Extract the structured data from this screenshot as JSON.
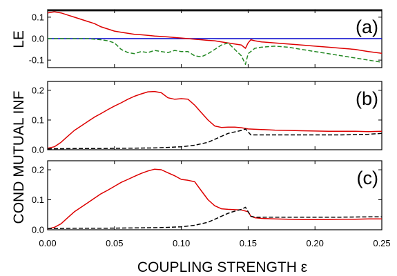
{
  "chart_data": {
    "type": "line",
    "xlabel": "COUPLING STRENGTH ε",
    "ylabel_top": "LE",
    "ylabel_bottom": "COND MUTUAL INF",
    "xlim": [
      0.0,
      0.25
    ],
    "x_ticks": [
      "0.00",
      "0.05",
      "0.10",
      "0.15",
      "0.20",
      "0.25"
    ],
    "x_tick_values": [
      0.0,
      0.05,
      0.1,
      0.15,
      0.2,
      0.25
    ],
    "panels": [
      {
        "label": "(a)",
        "ylim": [
          -0.135,
          0.135
        ],
        "y_ticks": [
          "0.1",
          "0.0",
          "-0.1"
        ],
        "y_tick_values": [
          0.1,
          0.0,
          -0.1
        ],
        "series": [
          {
            "color": "#000000",
            "style": "solid",
            "x": [
              0.0,
              0.25
            ],
            "y": [
              0.13,
              0.13
            ]
          },
          {
            "color": "#0000cc",
            "style": "solid",
            "x": [
              0.0,
              0.25
            ],
            "y": [
              0.0,
              0.0
            ]
          },
          {
            "color": "#dd0000",
            "style": "solid",
            "x": [
              0.0,
              0.005,
              0.01,
              0.015,
              0.02,
              0.025,
              0.03,
              0.035,
              0.04,
              0.045,
              0.05,
              0.055,
              0.06,
              0.065,
              0.07,
              0.075,
              0.08,
              0.085,
              0.09,
              0.095,
              0.1,
              0.105,
              0.11,
              0.115,
              0.12,
              0.125,
              0.13,
              0.135,
              0.14,
              0.145,
              0.148,
              0.15,
              0.152,
              0.155,
              0.16,
              0.17,
              0.18,
              0.19,
              0.2,
              0.21,
              0.22,
              0.23,
              0.24,
              0.25
            ],
            "y": [
              0.12,
              0.125,
              0.12,
              0.11,
              0.1,
              0.09,
              0.08,
              0.07,
              0.055,
              0.045,
              0.035,
              0.03,
              0.025,
              0.02,
              0.018,
              0.015,
              0.012,
              0.01,
              0.008,
              0.005,
              0.003,
              0.0,
              -0.003,
              -0.005,
              -0.008,
              -0.01,
              -0.015,
              -0.02,
              -0.025,
              -0.03,
              -0.045,
              -0.02,
              -0.005,
              -0.01,
              -0.015,
              -0.02,
              -0.025,
              -0.03,
              -0.035,
              -0.04,
              -0.045,
              -0.05,
              -0.06,
              -0.068
            ]
          },
          {
            "color": "#228822",
            "style": "dashed",
            "x": [
              0.0,
              0.01,
              0.02,
              0.03,
              0.04,
              0.045,
              0.05,
              0.055,
              0.06,
              0.065,
              0.07,
              0.075,
              0.08,
              0.085,
              0.09,
              0.095,
              0.1,
              0.105,
              0.11,
              0.115,
              0.12,
              0.125,
              0.13,
              0.135,
              0.14,
              0.145,
              0.148,
              0.15,
              0.155,
              0.16,
              0.17,
              0.18,
              0.19,
              0.2,
              0.21,
              0.22,
              0.23,
              0.24,
              0.25
            ],
            "y": [
              0.0,
              0.0,
              0.0,
              0.0,
              -0.005,
              -0.01,
              -0.02,
              -0.05,
              -0.065,
              -0.07,
              -0.06,
              -0.065,
              -0.055,
              -0.06,
              -0.065,
              -0.055,
              -0.06,
              -0.06,
              -0.08,
              -0.085,
              -0.07,
              -0.05,
              -0.03,
              -0.02,
              -0.05,
              -0.08,
              -0.12,
              -0.07,
              -0.045,
              -0.04,
              -0.035,
              -0.04,
              -0.05,
              -0.06,
              -0.07,
              -0.08,
              -0.09,
              -0.1,
              -0.11
            ]
          }
        ]
      },
      {
        "label": "(b)",
        "ylim": [
          0.0,
          0.23
        ],
        "y_ticks": [
          "0.2",
          "0.1",
          "0.0"
        ],
        "y_tick_values": [
          0.2,
          0.1,
          0.0
        ],
        "series": [
          {
            "color": "#dd0000",
            "style": "solid",
            "x": [
              0.0,
              0.005,
              0.01,
              0.015,
              0.02,
              0.025,
              0.03,
              0.035,
              0.04,
              0.045,
              0.05,
              0.055,
              0.06,
              0.065,
              0.07,
              0.075,
              0.08,
              0.085,
              0.09,
              0.095,
              0.1,
              0.105,
              0.11,
              0.115,
              0.12,
              0.125,
              0.13,
              0.135,
              0.14,
              0.145,
              0.15,
              0.16,
              0.17,
              0.18,
              0.19,
              0.2,
              0.21,
              0.22,
              0.23,
              0.24,
              0.25
            ],
            "y": [
              0.005,
              0.01,
              0.025,
              0.045,
              0.065,
              0.08,
              0.095,
              0.11,
              0.122,
              0.135,
              0.147,
              0.158,
              0.17,
              0.18,
              0.188,
              0.195,
              0.196,
              0.192,
              0.175,
              0.17,
              0.172,
              0.17,
              0.15,
              0.125,
              0.1,
              0.08,
              0.075,
              0.076,
              0.076,
              0.074,
              0.07,
              0.068,
              0.066,
              0.065,
              0.064,
              0.063,
              0.062,
              0.062,
              0.062,
              0.061,
              0.062
            ]
          },
          {
            "color": "#000000",
            "style": "dashed",
            "x": [
              0.0,
              0.02,
              0.04,
              0.06,
              0.08,
              0.09,
              0.1,
              0.11,
              0.12,
              0.125,
              0.13,
              0.135,
              0.14,
              0.145,
              0.148,
              0.15,
              0.152,
              0.16,
              0.18,
              0.2,
              0.22,
              0.24,
              0.25
            ],
            "y": [
              0.003,
              0.004,
              0.004,
              0.005,
              0.006,
              0.008,
              0.01,
              0.015,
              0.025,
              0.035,
              0.045,
              0.055,
              0.06,
              0.065,
              0.07,
              0.06,
              0.05,
              0.05,
              0.05,
              0.05,
              0.05,
              0.052,
              0.055
            ]
          }
        ]
      },
      {
        "label": "(c)",
        "ylim": [
          0.0,
          0.23
        ],
        "y_ticks": [
          "0.2",
          "0.1",
          "0.0"
        ],
        "y_tick_values": [
          0.2,
          0.1,
          0.0
        ],
        "series": [
          {
            "color": "#dd0000",
            "style": "solid",
            "x": [
              0.0,
              0.005,
              0.01,
              0.015,
              0.02,
              0.025,
              0.03,
              0.035,
              0.04,
              0.045,
              0.05,
              0.055,
              0.06,
              0.065,
              0.07,
              0.075,
              0.08,
              0.085,
              0.09,
              0.095,
              0.1,
              0.105,
              0.11,
              0.115,
              0.12,
              0.125,
              0.13,
              0.135,
              0.14,
              0.145,
              0.15,
              0.152,
              0.155,
              0.16,
              0.17,
              0.18,
              0.19,
              0.2,
              0.21,
              0.22,
              0.23,
              0.24,
              0.25
            ],
            "y": [
              0.003,
              0.008,
              0.02,
              0.04,
              0.06,
              0.075,
              0.09,
              0.105,
              0.12,
              0.132,
              0.145,
              0.158,
              0.168,
              0.178,
              0.188,
              0.196,
              0.202,
              0.2,
              0.19,
              0.18,
              0.168,
              0.165,
              0.16,
              0.13,
              0.1,
              0.08,
              0.07,
              0.068,
              0.067,
              0.066,
              0.06,
              0.045,
              0.04,
              0.038,
              0.036,
              0.035,
              0.034,
              0.034,
              0.034,
              0.035,
              0.035,
              0.036,
              0.036
            ]
          },
          {
            "color": "#000000",
            "style": "dashed",
            "x": [
              0.0,
              0.02,
              0.04,
              0.06,
              0.08,
              0.09,
              0.1,
              0.11,
              0.12,
              0.125,
              0.13,
              0.135,
              0.14,
              0.145,
              0.148,
              0.15,
              0.152,
              0.155,
              0.16,
              0.18,
              0.2,
              0.22,
              0.24,
              0.25
            ],
            "y": [
              0.004,
              0.005,
              0.005,
              0.006,
              0.007,
              0.008,
              0.01,
              0.015,
              0.025,
              0.035,
              0.045,
              0.055,
              0.062,
              0.068,
              0.075,
              0.06,
              0.045,
              0.042,
              0.042,
              0.042,
              0.042,
              0.042,
              0.043,
              0.043
            ]
          }
        ]
      }
    ]
  }
}
